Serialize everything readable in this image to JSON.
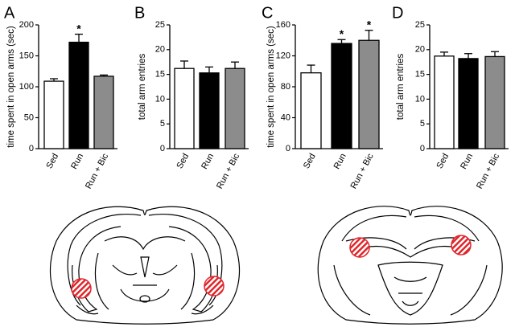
{
  "chart_data": [
    {
      "type": "bar",
      "panel": "A",
      "ylabel": "time spent in open arms (sec)",
      "categories": [
        "Sed",
        "Run",
        "Run + Bic"
      ],
      "values": [
        109,
        172,
        117
      ],
      "errors": [
        4,
        13,
        2
      ],
      "colors": [
        "#ffffff",
        "#000000",
        "#8c8c8c"
      ],
      "ylim": [
        0,
        200
      ],
      "yticks": [
        0,
        50,
        100,
        150,
        200
      ],
      "annotations": [
        {
          "text": "*",
          "category": "Run"
        }
      ]
    },
    {
      "type": "bar",
      "panel": "B",
      "ylabel": "total arm entries",
      "categories": [
        "Sed",
        "Run",
        "Run + Bic"
      ],
      "values": [
        16.2,
        15.3,
        16.2
      ],
      "errors": [
        1.5,
        1.2,
        1.3
      ],
      "colors": [
        "#ffffff",
        "#000000",
        "#8c8c8c"
      ],
      "ylim": [
        0,
        25
      ],
      "yticks": [
        0,
        5,
        10,
        15,
        20,
        25
      ],
      "annotations": []
    },
    {
      "type": "bar",
      "panel": "C",
      "ylabel": "time spent in open arms (sec)",
      "categories": [
        "Sed",
        "Run",
        "Run + Bic"
      ],
      "values": [
        98,
        136,
        140
      ],
      "errors": [
        10,
        5,
        13
      ],
      "colors": [
        "#ffffff",
        "#000000",
        "#8c8c8c"
      ],
      "ylim": [
        0,
        160
      ],
      "yticks": [
        0,
        40,
        80,
        120,
        160
      ],
      "annotations": [
        {
          "text": "*",
          "category": "Run"
        },
        {
          "text": "*",
          "category": "Run + Bic"
        }
      ]
    },
    {
      "type": "bar",
      "panel": "D",
      "ylabel": "total arm entries",
      "categories": [
        "Sed",
        "Run",
        "Run + Bic"
      ],
      "values": [
        18.7,
        18.2,
        18.6
      ],
      "errors": [
        0.8,
        1.0,
        1.0
      ],
      "colors": [
        "#ffffff",
        "#000000",
        "#8c8c8c"
      ],
      "ylim": [
        0,
        25
      ],
      "yticks": [
        0,
        5,
        10,
        15,
        20,
        25
      ],
      "annotations": []
    }
  ]
}
